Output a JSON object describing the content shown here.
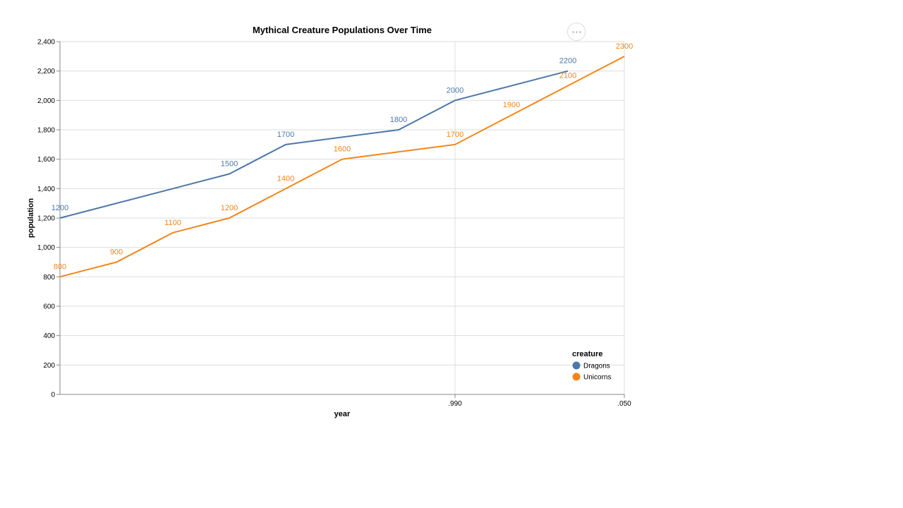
{
  "chart_data": {
    "type": "line",
    "title": "Mythical Creature Populations Over Time",
    "xlabel": "year",
    "ylabel": "population",
    "x_tick_labels": [
      ".990",
      ".050"
    ],
    "ylim": [
      0,
      2400
    ],
    "y_ticks": [
      0,
      200,
      400,
      600,
      800,
      1000,
      1200,
      1400,
      1600,
      1800,
      2000,
      2200,
      2400
    ],
    "legend": {
      "title": "creature",
      "placement": "bottom-right"
    },
    "series": [
      {
        "name": "Dragons",
        "color": "#4c78a8",
        "points": [
          {
            "x": 0,
            "y": 1200
          },
          {
            "x": 3,
            "y": 1500
          },
          {
            "x": 4,
            "y": 1700
          },
          {
            "x": 6,
            "y": 1800
          },
          {
            "x": 7,
            "y": 2000
          },
          {
            "x": 9,
            "y": 2200
          }
        ]
      },
      {
        "name": "Unicorns",
        "color": "#f58518",
        "points": [
          {
            "x": 0,
            "y": 800
          },
          {
            "x": 1,
            "y": 900
          },
          {
            "x": 2,
            "y": 1100
          },
          {
            "x": 3,
            "y": 1200
          },
          {
            "x": 4,
            "y": 1400
          },
          {
            "x": 5,
            "y": 1600
          },
          {
            "x": 7,
            "y": 1700
          },
          {
            "x": 8,
            "y": 1900
          },
          {
            "x": 9,
            "y": 2100
          },
          {
            "x": 10,
            "y": 2300
          }
        ]
      }
    ]
  },
  "actions_menu": {
    "icon": "more-horizontal-icon"
  }
}
